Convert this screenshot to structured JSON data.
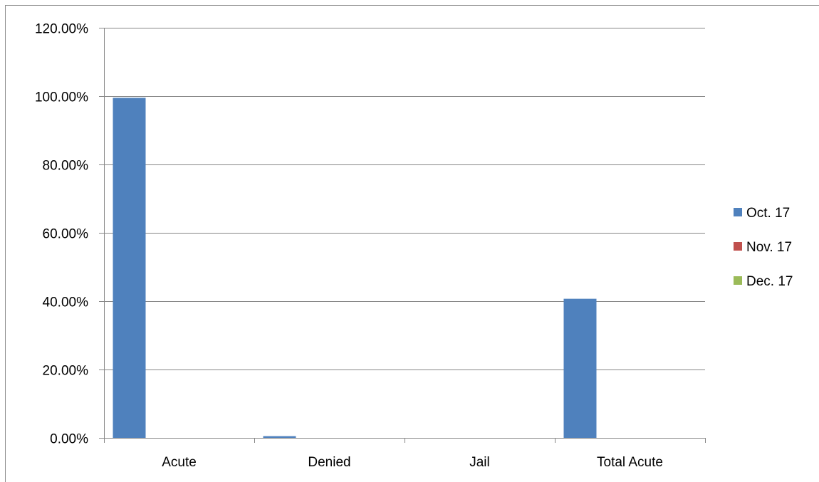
{
  "chart_data": {
    "type": "bar",
    "categories": [
      "Acute",
      "Denied",
      "Jail",
      "Total Acute"
    ],
    "series": [
      {
        "name": "Oct. 17",
        "values": [
          99.5,
          0.5,
          0,
          40.7
        ],
        "color": "#4f81bd"
      },
      {
        "name": "Nov. 17",
        "values": [
          0,
          0,
          0,
          0
        ],
        "color": "#c0504d"
      },
      {
        "name": "Dec. 17",
        "values": [
          0,
          0,
          0,
          0
        ],
        "color": "#9bbb59"
      }
    ],
    "ylim": [
      0,
      120
    ],
    "yticks": [
      0,
      20,
      40,
      60,
      80,
      100,
      120
    ],
    "ytick_labels": [
      "0.00%",
      "20.00%",
      "40.00%",
      "60.00%",
      "80.00%",
      "100.00%",
      "120.00%"
    ],
    "grid": true,
    "legend_position": "right",
    "title": "",
    "xlabel": "",
    "ylabel": "",
    "colors": {
      "gridline": "#868686",
      "axis": "#868686"
    }
  }
}
